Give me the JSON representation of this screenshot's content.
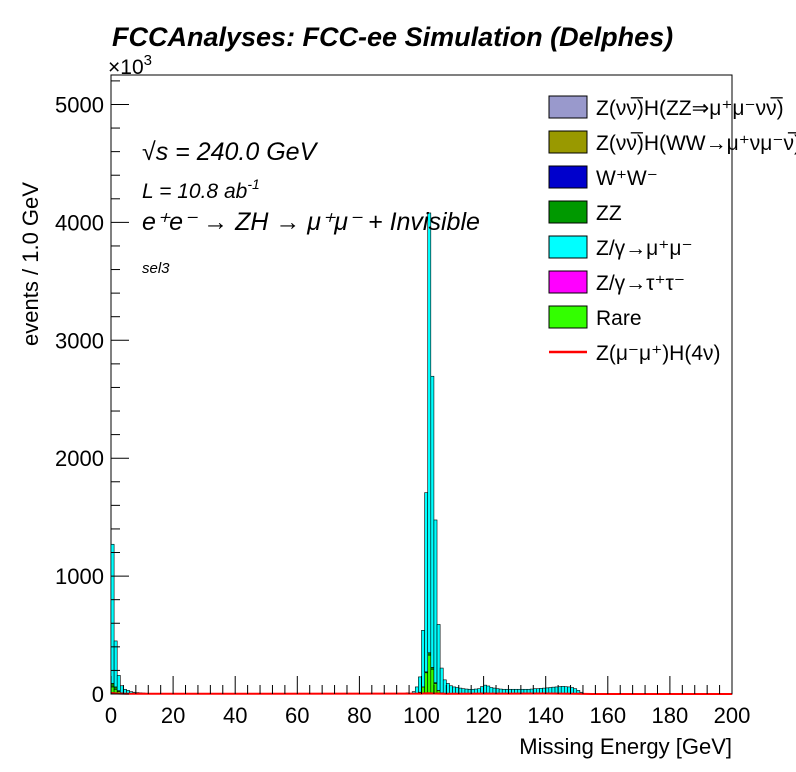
{
  "chart_data": {
    "type": "bar",
    "title": "FCCAnalyses: FCC-ee Simulation (Delphes)",
    "xlabel": "Missing Energy [GeV]",
    "ylabel": "events / 1.0 GeV",
    "y_multiplier": "×10",
    "y_multiplier_exp": "3",
    "xlim": [
      0,
      200
    ],
    "ylim": [
      0,
      5250
    ],
    "x_ticks": [
      0,
      20,
      40,
      60,
      80,
      100,
      120,
      140,
      160,
      180,
      200
    ],
    "y_ticks": [
      0,
      1000,
      2000,
      3000,
      4000,
      5000
    ],
    "grid": false,
    "stacked": true,
    "annotations": {
      "sqrt_s_symbol": "√s",
      "energy": " = 240.0 GeV",
      "lumi_prefix": "L = 10.8 ab",
      "lumi_exp": "-1",
      "process": "e⁺e⁻ → ZH → μ⁺μ⁻ + Invisible",
      "selection": "sel3"
    },
    "legend": {
      "placement": "top-right",
      "entries": [
        {
          "label": "Z(νν̅)H(ZZ⇒μ⁺μ⁻νν̅)",
          "color": "#9999cc",
          "style": "fill"
        },
        {
          "label": "Z(νν̅)H(WW→μ⁺νμ⁻ν̅)",
          "color": "#999900",
          "style": "fill"
        },
        {
          "label": "W⁺W⁻",
          "color": "#0000cc",
          "style": "fill"
        },
        {
          "label": "ZZ",
          "color": "#009900",
          "style": "fill"
        },
        {
          "label": "Z/γ→μ⁺μ⁻",
          "color": "#00ffff",
          "style": "fill"
        },
        {
          "label": "Z/γ→τ⁺τ⁻",
          "color": "#ff00ff",
          "style": "fill"
        },
        {
          "label": "Rare",
          "color": "#33ff00",
          "style": "fill"
        },
        {
          "label": "Z(μ⁻μ⁺)H(4ν)",
          "color": "#ff0000",
          "style": "line"
        }
      ]
    },
    "bin_width": 1.0,
    "series_points": {
      "Rare": [
        [
          0,
          60
        ],
        [
          1,
          40
        ],
        [
          2,
          20
        ],
        [
          3,
          10
        ],
        [
          99,
          15
        ],
        [
          100,
          60
        ],
        [
          101,
          180
        ],
        [
          102,
          330
        ],
        [
          103,
          210
        ],
        [
          104,
          90
        ],
        [
          105,
          30
        ],
        [
          106,
          10
        ]
      ],
      "ZZ": [
        [
          0,
          30
        ],
        [
          1,
          20
        ],
        [
          2,
          8
        ],
        [
          101,
          8
        ],
        [
          102,
          20
        ],
        [
          103,
          15
        ],
        [
          104,
          6
        ],
        [
          119,
          8
        ],
        [
          120,
          10
        ],
        [
          121,
          8
        ]
      ],
      "Z/γ→μ⁺μ⁻": [
        [
          0,
          1180
        ],
        [
          1,
          390
        ],
        [
          2,
          130
        ],
        [
          3,
          60
        ],
        [
          4,
          40
        ],
        [
          5,
          30
        ],
        [
          6,
          20
        ],
        [
          7,
          15
        ],
        [
          8,
          12
        ],
        [
          9,
          10
        ],
        [
          10,
          8
        ],
        [
          11,
          6
        ],
        [
          12,
          5
        ],
        [
          13,
          4
        ],
        [
          14,
          3
        ],
        [
          15,
          3
        ],
        [
          90,
          5
        ],
        [
          95,
          10
        ],
        [
          97,
          20
        ],
        [
          98,
          60
        ],
        [
          99,
          130
        ],
        [
          100,
          480
        ],
        [
          101,
          1520
        ],
        [
          102,
          3730
        ],
        [
          103,
          2470
        ],
        [
          104,
          1380
        ],
        [
          105,
          560
        ],
        [
          106,
          210
        ],
        [
          107,
          120
        ],
        [
          108,
          90
        ],
        [
          109,
          70
        ],
        [
          110,
          60
        ],
        [
          111,
          55
        ],
        [
          112,
          50
        ],
        [
          113,
          45
        ],
        [
          114,
          42
        ],
        [
          115,
          40
        ],
        [
          116,
          40
        ],
        [
          117,
          42
        ],
        [
          118,
          45
        ],
        [
          119,
          55
        ],
        [
          120,
          65
        ],
        [
          121,
          60
        ],
        [
          122,
          55
        ],
        [
          123,
          50
        ],
        [
          124,
          45
        ],
        [
          125,
          42
        ],
        [
          126,
          40
        ],
        [
          127,
          40
        ],
        [
          128,
          40
        ],
        [
          129,
          40
        ],
        [
          130,
          40
        ],
        [
          131,
          40
        ],
        [
          132,
          40
        ],
        [
          133,
          40
        ],
        [
          134,
          40
        ],
        [
          135,
          42
        ],
        [
          136,
          45
        ],
        [
          137,
          45
        ],
        [
          138,
          48
        ],
        [
          139,
          50
        ],
        [
          140,
          52
        ],
        [
          141,
          55
        ],
        [
          142,
          58
        ],
        [
          143,
          60
        ],
        [
          144,
          62
        ],
        [
          145,
          65
        ],
        [
          146,
          62
        ],
        [
          147,
          60
        ],
        [
          148,
          55
        ],
        [
          149,
          45
        ],
        [
          150,
          30
        ],
        [
          151,
          15
        ],
        [
          152,
          5
        ]
      ]
    },
    "signal_line": {
      "name": "Z(μ⁻μ⁺)H(4ν)",
      "points": [
        [
          0,
          8
        ],
        [
          2,
          4
        ],
        [
          5,
          2
        ],
        [
          100,
          3
        ],
        [
          102,
          6
        ],
        [
          104,
          4
        ],
        [
          108,
          2
        ],
        [
          120,
          3
        ],
        [
          140,
          4
        ],
        [
          150,
          2
        ],
        [
          155,
          0
        ],
        [
          200,
          0
        ]
      ]
    }
  }
}
